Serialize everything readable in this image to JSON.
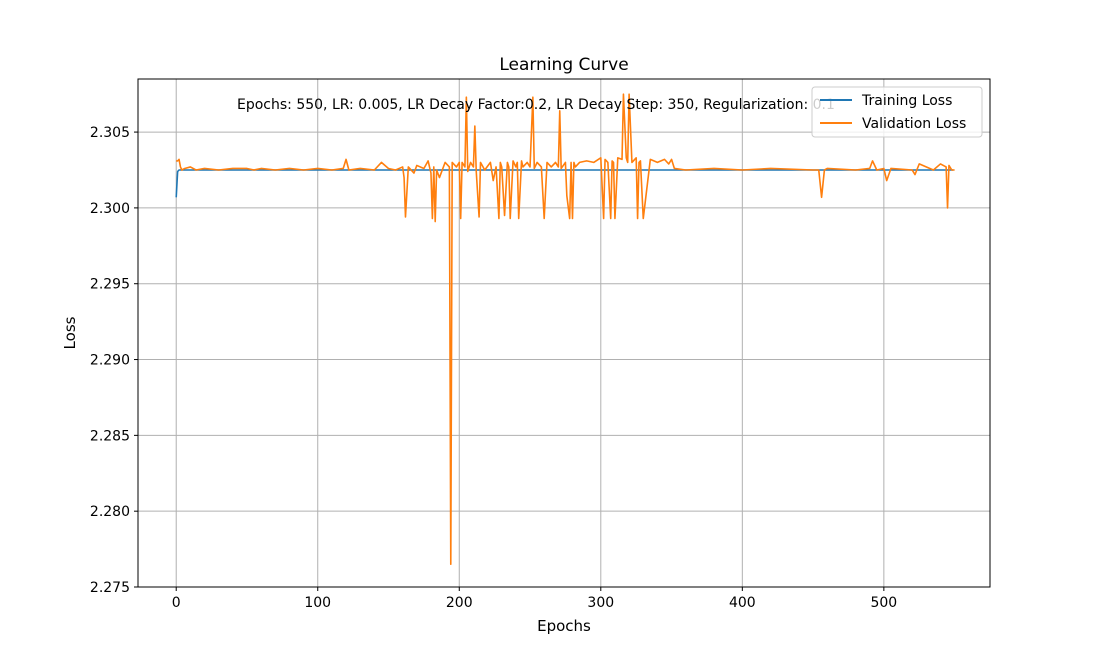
{
  "chart_data": {
    "type": "line",
    "title": "Learning Curve",
    "xlabel": "Epochs",
    "ylabel": "Loss",
    "annotation": "Epochs: 550, LR: 0.005, LR Decay Factor:0.2, LR Decay Step: 350, Regularization: 0.1",
    "xlim": [
      -27,
      575
    ],
    "ylim": [
      2.275,
      2.3085
    ],
    "xticks": [
      0,
      100,
      200,
      300,
      400,
      500
    ],
    "yticks": [
      2.275,
      2.28,
      2.285,
      2.29,
      2.295,
      2.3,
      2.305
    ],
    "xtick_labels": [
      "0",
      "100",
      "200",
      "300",
      "400",
      "500"
    ],
    "ytick_labels": [
      "2.275",
      "2.280",
      "2.285",
      "2.290",
      "2.295",
      "2.300",
      "2.305"
    ],
    "grid": true,
    "legend_position": "top-right",
    "series": [
      {
        "name": "Training Loss",
        "color": "#1f77b4",
        "x": [
          0,
          1,
          2,
          3,
          5,
          10,
          20,
          40,
          60,
          80,
          100,
          150,
          200,
          250,
          300,
          350,
          400,
          450,
          500,
          549
        ],
        "y": [
          2.3007,
          2.3024,
          2.3025,
          2.3025,
          2.3025,
          2.3025,
          2.3025,
          2.3025,
          2.3025,
          2.3025,
          2.3025,
          2.3025,
          2.3025,
          2.3025,
          2.3025,
          2.3025,
          2.3025,
          2.3025,
          2.3025,
          2.3025
        ]
      },
      {
        "name": "Validation Loss",
        "color": "#ff7f0e",
        "x": [
          0,
          1,
          2,
          3,
          4,
          6,
          10,
          14,
          20,
          30,
          40,
          50,
          55,
          60,
          70,
          80,
          90,
          100,
          110,
          118,
          120,
          122,
          130,
          140,
          145,
          150,
          155,
          160,
          161,
          162,
          164,
          168,
          170,
          175,
          178,
          180,
          181,
          182,
          183,
          184,
          186,
          190,
          193,
          194,
          195,
          198,
          200,
          201,
          202,
          204,
          205,
          206,
          208,
          210,
          211,
          212,
          214,
          215,
          218,
          222,
          224,
          226,
          228,
          229,
          230,
          232,
          234,
          235,
          236,
          238,
          240,
          241,
          242,
          244,
          245,
          248,
          250,
          252,
          253,
          255,
          258,
          260,
          262,
          265,
          268,
          270,
          271,
          272,
          275,
          276,
          278,
          279,
          280,
          281,
          282,
          285,
          290,
          295,
          300,
          302,
          303,
          305,
          307,
          308,
          309,
          310,
          312,
          315,
          316,
          318,
          319,
          320,
          322,
          325,
          326,
          327,
          328,
          330,
          335,
          340,
          345,
          348,
          350,
          352,
          360,
          380,
          400,
          420,
          450,
          454,
          456,
          458,
          460,
          480,
          490,
          492,
          495,
          500,
          502,
          505,
          520,
          522,
          525,
          535,
          540,
          544,
          545,
          546,
          548,
          550
        ],
        "y": [
          2.3031,
          2.3031,
          2.3032,
          2.3027,
          2.3025,
          2.3026,
          2.3027,
          2.3025,
          2.3026,
          2.3025,
          2.3026,
          2.3026,
          2.3025,
          2.3026,
          2.3025,
          2.3026,
          2.3025,
          2.3026,
          2.3025,
          2.3026,
          2.3032,
          2.3025,
          2.3026,
          2.3025,
          2.303,
          2.3026,
          2.3025,
          2.3027,
          2.302,
          2.2994,
          2.3027,
          2.3023,
          2.3028,
          2.3026,
          2.3031,
          2.3023,
          2.2993,
          2.3027,
          2.2991,
          2.3025,
          2.302,
          2.303,
          2.3027,
          2.2765,
          2.303,
          2.3027,
          2.303,
          2.2993,
          2.303,
          2.3027,
          2.3073,
          2.3024,
          2.303,
          2.3027,
          2.3054,
          2.3024,
          2.2994,
          2.303,
          2.3025,
          2.303,
          2.3018,
          2.3027,
          2.2993,
          2.303,
          2.3027,
          2.2995,
          2.303,
          2.3027,
          2.2993,
          2.3031,
          2.3027,
          2.303,
          2.2993,
          2.3031,
          2.3027,
          2.303,
          2.3027,
          2.3073,
          2.3026,
          2.303,
          2.3027,
          2.2993,
          2.303,
          2.3027,
          2.303,
          2.3027,
          2.3064,
          2.3026,
          2.303,
          2.3008,
          2.2993,
          2.303,
          2.2993,
          2.303,
          2.3027,
          2.303,
          2.3031,
          2.303,
          2.3033,
          2.2993,
          2.3032,
          2.303,
          2.2993,
          2.3031,
          2.303,
          2.2993,
          2.3033,
          2.3032,
          2.3075,
          2.3033,
          2.303,
          2.3075,
          2.303,
          2.3033,
          2.2993,
          2.303,
          2.3031,
          2.2993,
          2.3032,
          2.303,
          2.3032,
          2.3029,
          2.3032,
          2.3026,
          2.3025,
          2.3026,
          2.3025,
          2.3026,
          2.3025,
          2.3025,
          2.3007,
          2.3025,
          2.3026,
          2.3025,
          2.3026,
          2.3031,
          2.3025,
          2.3026,
          2.3018,
          2.3026,
          2.3025,
          2.3022,
          2.3029,
          2.3025,
          2.3029,
          2.3027,
          2.3,
          2.3028,
          2.3025,
          2.3025
        ]
      }
    ]
  }
}
